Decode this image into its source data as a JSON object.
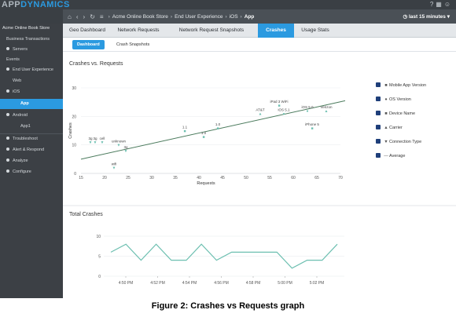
{
  "app": {
    "logo_prefix": "APP",
    "logo_suffix": "DYNAMICS"
  },
  "navbar": {
    "breadcrumbs": [
      "Acme Online Book Store",
      "End User Experience",
      "iOS",
      "App"
    ],
    "time_window": "last 15 minutes"
  },
  "sidebar": {
    "header": "Acme Online Book Store",
    "items": [
      "Business Transactions",
      "Servers",
      "Events",
      "End User Experience",
      "Web",
      "iOS",
      "App",
      "Android",
      "App1",
      "Troubleshoot",
      "Alert & Respond",
      "Analyze",
      "Configure"
    ]
  },
  "tabs": [
    "Geo Dashboard",
    "Network Requests",
    "Network Request Snapshots",
    "Crashes",
    "Usage Stats"
  ],
  "subtabs": [
    "Dashboard",
    "Crash Snapshots"
  ],
  "colors": {
    "accent": "#2b9ae0",
    "sidebar": "#3c4045",
    "topbar": "#3a3f44",
    "regression": "#4a7a5c",
    "series": "#6cbfb0"
  },
  "legend": {
    "items": [
      {
        "symbol": "■",
        "label": "Mobile App Version"
      },
      {
        "symbol": "●",
        "label": "OS Version"
      },
      {
        "symbol": "■",
        "label": "Device Name"
      },
      {
        "symbol": "▲",
        "label": "Carrier"
      },
      {
        "symbol": "▼",
        "label": "Connection Type"
      },
      {
        "symbol": "—",
        "label": "Average"
      }
    ]
  },
  "caption": "Figure 2:  Crashes vs Requests graph",
  "chart_data": [
    {
      "type": "scatter",
      "title": "Crashes vs. Requests",
      "xlabel": "Requests",
      "ylabel": "Crashes",
      "xlim": [
        15,
        70
      ],
      "ylim": [
        0,
        30
      ],
      "xticks": [
        15,
        20,
        25,
        30,
        35,
        40,
        45,
        50,
        55,
        60,
        65,
        70
      ],
      "yticks": [
        0,
        10,
        20,
        30
      ],
      "points": [
        {
          "x": 17,
          "y": 11,
          "label": "3g",
          "marker": "▼"
        },
        {
          "x": 18,
          "y": 11,
          "label": "3g",
          "marker": "▼"
        },
        {
          "x": 19.5,
          "y": 11,
          "label": "cell",
          "marker": "▼"
        },
        {
          "x": 22,
          "y": 2,
          "label": "wifi",
          "marker": "▼"
        },
        {
          "x": 23,
          "y": 10,
          "label": "unknown",
          "marker": "▼"
        },
        {
          "x": 24.5,
          "y": 8,
          "label": "3g",
          "marker": "▼"
        },
        {
          "x": 37,
          "y": 15,
          "label": "1.1",
          "marker": "■"
        },
        {
          "x": 41,
          "y": 13,
          "label": "1.0",
          "marker": "■"
        },
        {
          "x": 44,
          "y": 16,
          "label": "1.0",
          "marker": "■"
        },
        {
          "x": 53,
          "y": 21,
          "label": "AT&T",
          "marker": "▲"
        },
        {
          "x": 57,
          "y": 24,
          "label": "iPad 3 WiFi",
          "marker": "■"
        },
        {
          "x": 58,
          "y": 21,
          "label": "iOS 5.1",
          "marker": "●"
        },
        {
          "x": 63,
          "y": 22,
          "label": "iOS 5.0",
          "marker": "●"
        },
        {
          "x": 64,
          "y": 16,
          "label": "iPhone 5",
          "marker": "■"
        },
        {
          "x": 67,
          "y": 22,
          "label": "Verizon",
          "marker": "▲"
        }
      ],
      "trendline": {
        "x": [
          15,
          71
        ],
        "y": [
          5,
          25.5
        ]
      }
    },
    {
      "type": "line",
      "title": "Total Crashes",
      "ylim": [
        0,
        10
      ],
      "yticks": [
        0,
        5,
        10
      ],
      "xtick_labels": [
        "4:50 PM",
        "4:52 PM",
        "4:54 PM",
        "4:56 PM",
        "4:58 PM",
        "5:00 PM",
        "5:02 PM"
      ],
      "series": [
        {
          "values": [
            6,
            8,
            4,
            8,
            4,
            4,
            8,
            4,
            6,
            6,
            6,
            6,
            2,
            4,
            4,
            8
          ]
        }
      ]
    }
  ]
}
